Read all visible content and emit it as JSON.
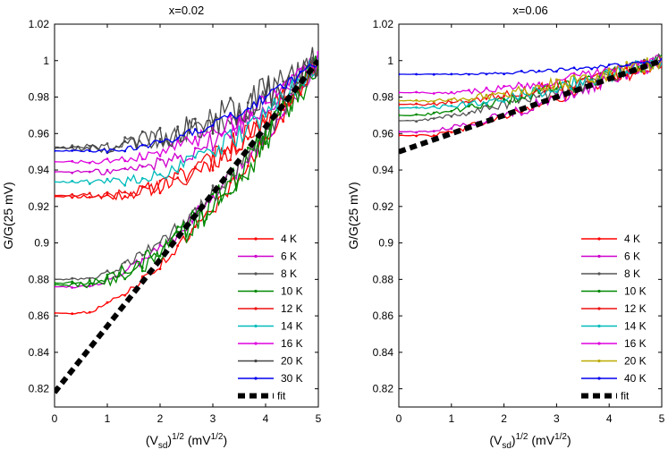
{
  "chart_data": [
    {
      "type": "line",
      "title": "x=0.02",
      "xlabel": {
        "base": "(V",
        "sub": "sd",
        "close": ")",
        "exp": "1/2",
        "unit_open": " (mV",
        "unit_exp": "1/2",
        "unit_close": ")"
      },
      "ylabel": "G/G(25 mV)",
      "xlim": [
        0,
        5
      ],
      "ylim": [
        0.81,
        1.02
      ],
      "xticks": [
        0,
        1,
        2,
        3,
        4,
        5
      ],
      "yticks": [
        0.82,
        0.84,
        0.86,
        0.88,
        0.9,
        0.92,
        0.94,
        0.96,
        0.98,
        1,
        1.02
      ],
      "ytick_labels": [
        "0.82",
        "0.84",
        "0.86",
        "0.88",
        "0.9",
        "0.92",
        "0.94",
        "0.96",
        "0.98",
        "1",
        "1.02"
      ],
      "legend_position": "lower-right",
      "series": [
        {
          "name": "4 K",
          "color": "#ff0000",
          "curves": [
            {
              "g0": 0.9255,
              "x0": 0.8,
              "p": 2.0,
              "noise": 0.007
            },
            {
              "g0": 0.8615,
              "x0": 0.5,
              "p": 1.5,
              "noise": 0.004
            }
          ]
        },
        {
          "name": "6 K",
          "color": "#cc00cc",
          "curves": [
            {
              "g0": 0.939,
              "x0": 0.8,
              "p": 2.0,
              "noise": 0.006
            },
            {
              "g0": 0.876,
              "x0": 0.5,
              "p": 1.6,
              "noise": 0.005
            }
          ]
        },
        {
          "name": "8 K",
          "color": "#555555",
          "curves": [
            {
              "g0": 0.9525,
              "x0": 0.6,
              "p": 1.9,
              "noise": 0.009
            },
            {
              "g0": 0.88,
              "x0": 0.5,
              "p": 1.6,
              "noise": 0.005
            }
          ]
        },
        {
          "name": "10 K",
          "color": "#008800",
          "curves": [
            {
              "g0": 0.878,
              "x0": 0.5,
              "p": 1.7,
              "noise": 0.008
            },
            {
              "g0": 0.877,
              "x0": 0.6,
              "p": 1.7,
              "noise": 0.009
            }
          ]
        },
        {
          "name": "12 K",
          "color": "#ee1111",
          "curves": [
            {
              "g0": 0.926,
              "x0": 0.9,
              "p": 2.0,
              "noise": 0.007
            }
          ]
        },
        {
          "name": "14 K",
          "color": "#00bbbb",
          "curves": [
            {
              "g0": 0.9335,
              "x0": 1.0,
              "p": 2.0,
              "noise": 0.006
            }
          ]
        },
        {
          "name": "16 K",
          "color": "#dd00dd",
          "curves": [
            {
              "g0": 0.9445,
              "x0": 0.8,
              "p": 1.9,
              "noise": 0.005
            }
          ]
        },
        {
          "name": "20 K",
          "color": "#444444",
          "curves": [
            {
              "g0": 0.952,
              "x0": 0.6,
              "p": 1.8,
              "noise": 0.01
            }
          ]
        },
        {
          "name": "30 K",
          "color": "#0000ee",
          "curves": [
            {
              "g0": 0.9505,
              "x0": 0.8,
              "p": 1.9,
              "noise": 0.003
            }
          ]
        }
      ],
      "fit": {
        "name": "fit",
        "x": [
          0,
          5
        ],
        "y": [
          0.818,
          1.0
        ]
      }
    },
    {
      "type": "line",
      "title": "x=0.06",
      "xlabel": {
        "base": "(V",
        "sub": "sd",
        "close": ")",
        "exp": "1/2",
        "unit_open": " (mV",
        "unit_exp": "1/2",
        "unit_close": ")"
      },
      "ylabel": "G/G(25 mV)",
      "xlim": [
        0,
        5
      ],
      "ylim": [
        0.81,
        1.02
      ],
      "xticks": [
        0,
        1,
        2,
        3,
        4,
        5
      ],
      "yticks": [
        0.82,
        0.84,
        0.86,
        0.88,
        0.9,
        0.92,
        0.94,
        0.96,
        0.98,
        1,
        1.02
      ],
      "ytick_labels": [
        "0.82",
        "0.84",
        "0.86",
        "0.88",
        "0.9",
        "0.92",
        "0.94",
        "0.96",
        "0.98",
        "1",
        "1.02"
      ],
      "legend_position": "lower-right",
      "series": [
        {
          "name": "4 K",
          "color": "#ff0000",
          "curves": [
            {
              "g0": 0.959,
              "x0": 0.6,
              "p": 1.2,
              "noise": 0.004
            }
          ]
        },
        {
          "name": "6 K",
          "color": "#cc00cc",
          "curves": [
            {
              "g0": 0.961,
              "x0": 0.5,
              "p": 1.3,
              "noise": 0.004
            }
          ]
        },
        {
          "name": "8 K",
          "color": "#555555",
          "curves": [
            {
              "g0": 0.967,
              "x0": 0.3,
              "p": 1.3,
              "noise": 0.004
            }
          ]
        },
        {
          "name": "10 K",
          "color": "#008800",
          "curves": [
            {
              "g0": 0.97,
              "x0": 0.3,
              "p": 1.3,
              "noise": 0.004
            }
          ]
        },
        {
          "name": "12 K",
          "color": "#ee1111",
          "curves": [
            {
              "g0": 0.976,
              "x0": 0.5,
              "p": 1.4,
              "noise": 0.004
            }
          ]
        },
        {
          "name": "14 K",
          "color": "#00bbbb",
          "curves": [
            {
              "g0": 0.974,
              "x0": 0.5,
              "p": 1.4,
              "noise": 0.004
            }
          ]
        },
        {
          "name": "16 K",
          "color": "#dd00dd",
          "curves": [
            {
              "g0": 0.9825,
              "x0": 0.9,
              "p": 1.5,
              "noise": 0.003
            }
          ]
        },
        {
          "name": "20 K",
          "color": "#bbaa00",
          "curves": [
            {
              "g0": 0.978,
              "x0": 0.7,
              "p": 1.4,
              "noise": 0.004
            }
          ]
        },
        {
          "name": "40 K",
          "color": "#0000ee",
          "curves": [
            {
              "g0": 0.9925,
              "x0": 1.2,
              "p": 1.6,
              "noise": 0.001
            }
          ]
        }
      ],
      "fit": {
        "name": "fit",
        "x": [
          0,
          5
        ],
        "y": [
          0.95,
          1.0
        ]
      }
    }
  ]
}
